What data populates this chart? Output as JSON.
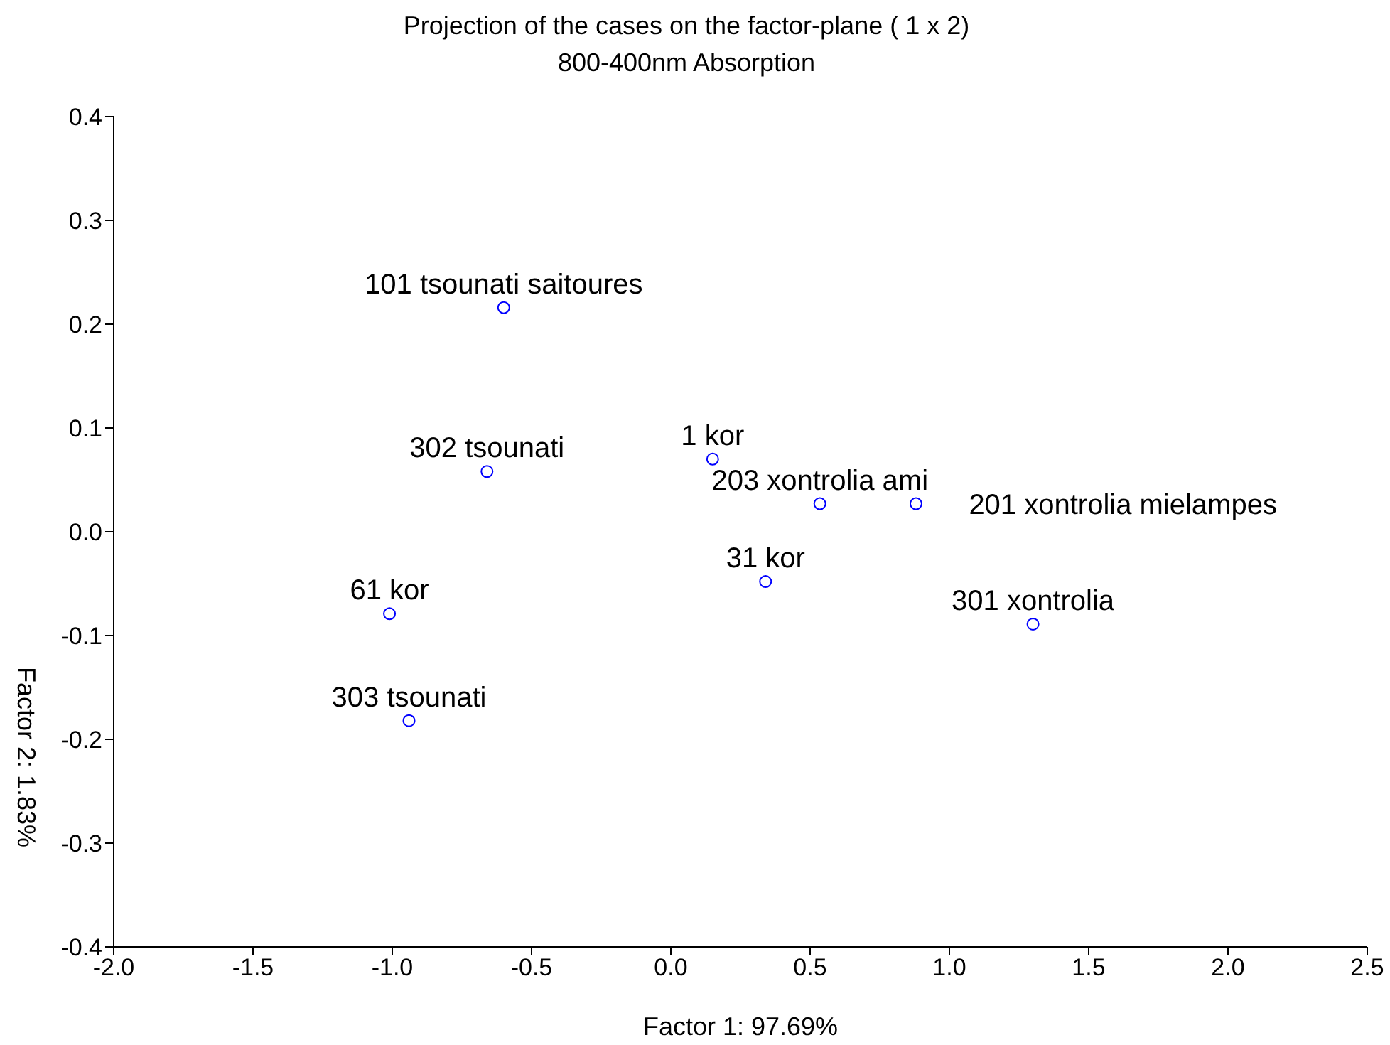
{
  "chart_data": {
    "type": "scatter",
    "title": "Projection of the cases on the factor-plane (  1 x   2)",
    "subtitle": "800-400nm Absorption",
    "xlabel": "Factor 1: 97.69%",
    "ylabel": "Factor 2:  1.83%",
    "marker": "circle",
    "grid": false,
    "legend": false,
    "xlim": [
      -2.0,
      2.5
    ],
    "xticks": [
      {
        "value": -2,
        "label": "-2.0"
      },
      {
        "value": -1.5,
        "label": "-1.5"
      },
      {
        "value": -1,
        "label": "-1.0"
      },
      {
        "value": -0.5,
        "label": "-0.5"
      },
      {
        "value": 0,
        "label": "0.0"
      },
      {
        "value": 0.5,
        "label": "0.5"
      },
      {
        "value": 1,
        "label": "1.0"
      },
      {
        "value": 1.5,
        "label": "1.5"
      },
      {
        "value": 2,
        "label": "2.0"
      },
      {
        "value": 2.5,
        "label": "2.5"
      }
    ],
    "ylim": [
      -0.4,
      0.4
    ],
    "yticks": [
      {
        "value": -0.4,
        "label": "-0.4"
      },
      {
        "value": -0.3,
        "label": "-0.3"
      },
      {
        "value": -0.2,
        "label": "-0.2"
      },
      {
        "value": -0.1,
        "label": "-0.1"
      },
      {
        "value": 0,
        "label": "0.0"
      },
      {
        "value": 0.1,
        "label": "0.1"
      },
      {
        "value": 0.2,
        "label": "0.2"
      },
      {
        "value": 0.3,
        "label": "0.3"
      },
      {
        "value": 0.4,
        "label": "0.4"
      }
    ],
    "series": [
      {
        "color": "#0000ff",
        "x": [
          -0.6,
          -0.66,
          -0.94,
          -1.01,
          0.15,
          0.34,
          0.535,
          0.88,
          1.3
        ],
        "values": [
          0.216,
          0.058,
          -0.182,
          -0.079,
          0.07,
          -0.048,
          0.027,
          0.027,
          -0.089
        ]
      }
    ],
    "annotations": [
      {
        "text": "101 tsounati saitoures",
        "x": -0.6,
        "y": 0.216
      },
      {
        "text": "302 tsounati",
        "x": -0.66,
        "y": 0.058
      },
      {
        "text": "303 tsounati",
        "x": -0.94,
        "y": -0.182
      },
      {
        "text": "61 kor",
        "x": -1.01,
        "y": -0.079
      },
      {
        "text": "1 kor",
        "x": 0.15,
        "y": 0.07
      },
      {
        "text": "31 kor",
        "x": 0.34,
        "y": -0.048
      },
      {
        "text": "203 xontrolia ami",
        "x": 0.535,
        "y": 0.027
      },
      {
        "text": "201 xontrolia mielampes",
        "x": 0.88,
        "y": 0.027
      },
      {
        "text": "301 xontrolia",
        "x": 1.3,
        "y": -0.089
      }
    ]
  }
}
